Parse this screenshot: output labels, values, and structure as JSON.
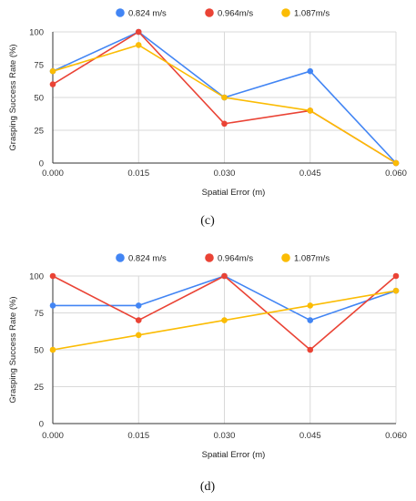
{
  "chart_data": [
    {
      "type": "line",
      "panel_label": "(c)",
      "title": "",
      "xlabel": "Spatial Error (m)",
      "ylabel": "Grasping Success Rate (%)",
      "x": [
        "0.000",
        "0.015",
        "0.030",
        "0.045",
        "0.060"
      ],
      "ylim": [
        0,
        100
      ],
      "yticks": [
        "0",
        "25",
        "50",
        "75",
        "100"
      ],
      "grid": true,
      "legend_position": "top",
      "series": [
        {
          "name": "0.824 m/s",
          "color": "#4285f4",
          "values": [
            70,
            100,
            50,
            70,
            0
          ]
        },
        {
          "name": "0.964m/s",
          "color": "#ea4335",
          "values": [
            60,
            100,
            30,
            40,
            0
          ]
        },
        {
          "name": "1.087m/s",
          "color": "#fbbc04",
          "values": [
            70,
            90,
            50,
            40,
            0
          ]
        }
      ]
    },
    {
      "type": "line",
      "panel_label": "(d)",
      "title": "",
      "xlabel": "Spatial Error (m)",
      "ylabel": "Grasping Success Rate (%)",
      "x": [
        "0.000",
        "0.015",
        "0.030",
        "0.045",
        "0.060"
      ],
      "ylim": [
        0,
        100
      ],
      "yticks": [
        "0",
        "25",
        "50",
        "75",
        "100"
      ],
      "grid": true,
      "legend_position": "top",
      "series": [
        {
          "name": "0.824 m/s",
          "color": "#4285f4",
          "values": [
            80,
            80,
            100,
            70,
            90
          ]
        },
        {
          "name": "0.964m/s",
          "color": "#ea4335",
          "values": [
            100,
            70,
            100,
            50,
            100
          ]
        },
        {
          "name": "1.087m/s",
          "color": "#fbbc04",
          "values": [
            50,
            60,
            70,
            80,
            90
          ]
        }
      ]
    }
  ]
}
